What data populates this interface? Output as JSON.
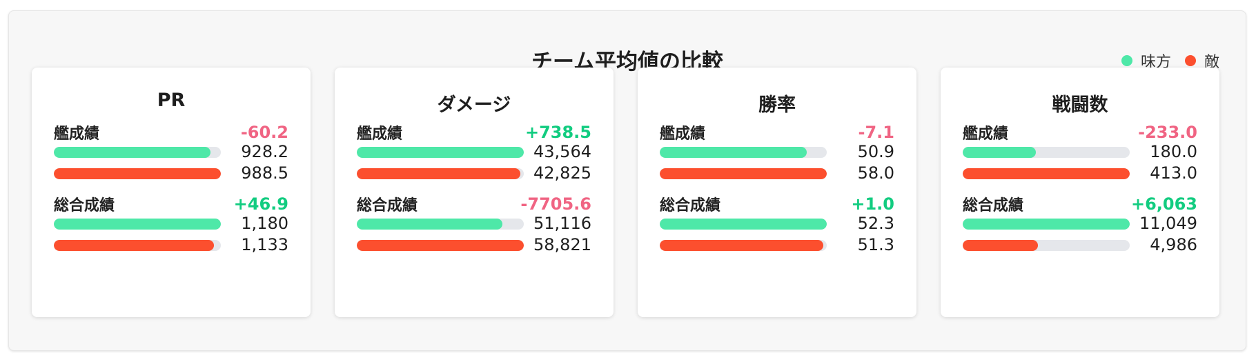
{
  "title": "チーム平均値の比較",
  "legend": {
    "ally": "味方",
    "enemy": "敵"
  },
  "colors": {
    "ally": "#4ee8a8",
    "enemy": "#fc4f2e",
    "positive": "#12cc80",
    "negative": "#f06483"
  },
  "cards": [
    {
      "title": "PR",
      "sections": [
        {
          "label": "艦成績",
          "diff": "-60.2",
          "ally_value": "928.2",
          "enemy_value": "988.5",
          "ally_fill": 0.94,
          "enemy_fill": 1.0
        },
        {
          "label": "総合成績",
          "diff": "+46.9",
          "ally_value": "1,180",
          "enemy_value": "1,133",
          "ally_fill": 1.0,
          "enemy_fill": 0.96
        }
      ]
    },
    {
      "title": "ダメージ",
      "sections": [
        {
          "label": "艦成績",
          "diff": "+738.5",
          "ally_value": "43,564",
          "enemy_value": "42,825",
          "ally_fill": 1.0,
          "enemy_fill": 0.98
        },
        {
          "label": "総合成績",
          "diff": "-7705.6",
          "ally_value": "51,116",
          "enemy_value": "58,821",
          "ally_fill": 0.87,
          "enemy_fill": 1.0
        }
      ]
    },
    {
      "title": "勝率",
      "sections": [
        {
          "label": "艦成績",
          "diff": "-7.1",
          "ally_value": "50.9",
          "enemy_value": "58.0",
          "ally_fill": 0.88,
          "enemy_fill": 1.0
        },
        {
          "label": "総合成績",
          "diff": "+1.0",
          "ally_value": "52.3",
          "enemy_value": "51.3",
          "ally_fill": 1.0,
          "enemy_fill": 0.98
        }
      ]
    },
    {
      "title": "戦闘数",
      "sections": [
        {
          "label": "艦成績",
          "diff": "-233.0",
          "ally_value": "180.0",
          "enemy_value": "413.0",
          "ally_fill": 0.44,
          "enemy_fill": 1.0
        },
        {
          "label": "総合成績",
          "diff": "+6,063",
          "ally_value": "11,049",
          "enemy_value": "4,986",
          "ally_fill": 1.0,
          "enemy_fill": 0.45
        }
      ]
    }
  ]
}
